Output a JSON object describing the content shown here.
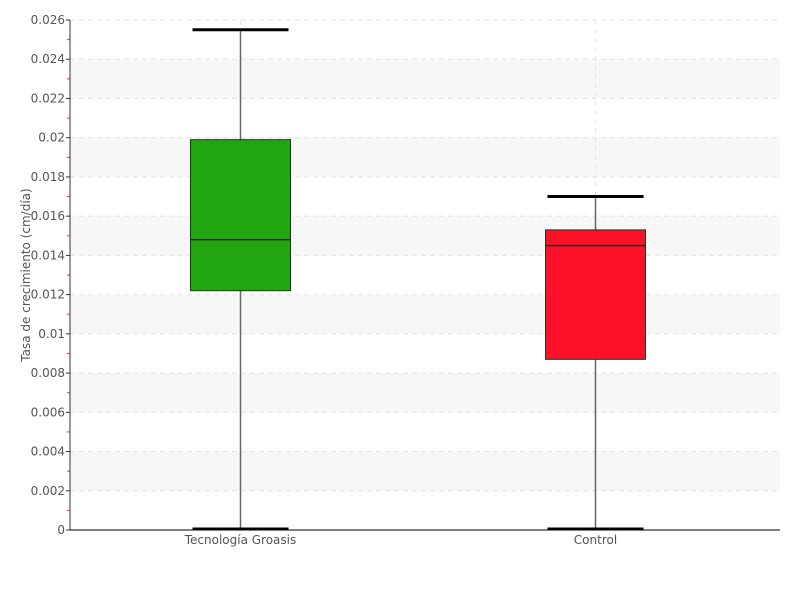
{
  "chart_data": {
    "type": "box",
    "categories": [
      "Tecnología Groasis",
      "Control"
    ],
    "ylabel": "Tasa de crecimiento (cm/día)",
    "xlabel": "",
    "ylim": [
      0,
      0.026
    ],
    "ytick_step": 0.002,
    "ytick_labels": [
      "0",
      "0.002",
      "0.004",
      "0.006",
      "0.008",
      "0.01",
      "0.012",
      "0.014",
      "0.016",
      "0.018",
      "0.02",
      "0.022",
      "0.024",
      "0.026"
    ],
    "grid": true,
    "boxes": [
      {
        "category": "Tecnología Groasis",
        "min": 0.0,
        "q1": 0.0122,
        "median": 0.0148,
        "q3": 0.0199,
        "max": 0.0255,
        "color": "#22a60f"
      },
      {
        "category": "Control",
        "min": 0.0,
        "q1": 0.0087,
        "median": 0.0145,
        "q3": 0.0153,
        "max": 0.017,
        "color": "#ff1029"
      }
    ]
  }
}
